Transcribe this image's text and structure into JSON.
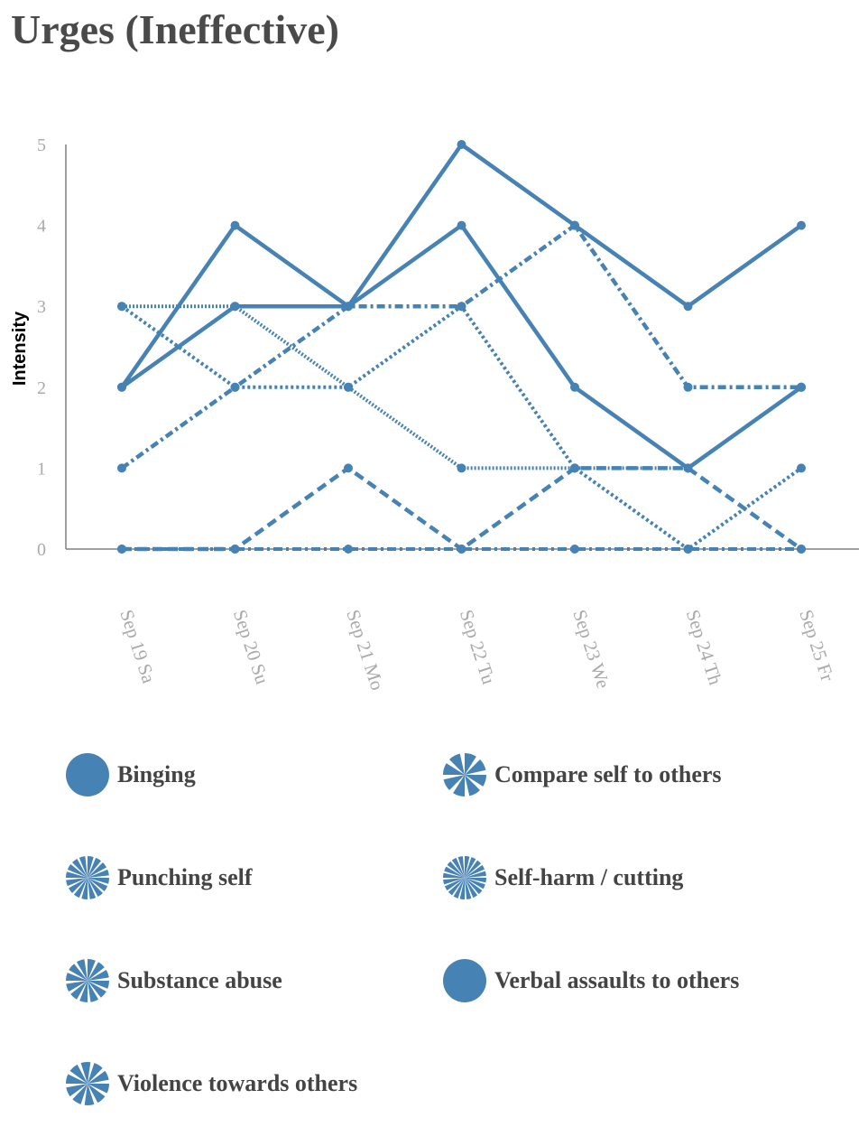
{
  "title": "Urges (Ineffective)",
  "chart_data": {
    "type": "line",
    "ylabel": "Intensity",
    "ylim": [
      0,
      5
    ],
    "yticks": [
      0,
      1,
      2,
      3,
      4,
      5
    ],
    "categories": [
      "Sep 19 Sa",
      "Sep 20 Su",
      "Sep 21 Mo",
      "Sep 22 Tu",
      "Sep 23 We",
      "Sep 24 Th",
      "Sep 25 Fr"
    ],
    "color": "#4682b4",
    "series": [
      {
        "name": "Binging",
        "values": [
          2,
          3,
          3,
          5,
          4,
          3,
          4
        ],
        "style": "solid"
      },
      {
        "name": "Compare self to others",
        "values": [
          3,
          2,
          2,
          3,
          1,
          0,
          1
        ],
        "style": "dotted"
      },
      {
        "name": "Punching self",
        "values": [
          0,
          0,
          0,
          0,
          0,
          0,
          0
        ],
        "style": "dash-dot"
      },
      {
        "name": "Self-harm / cutting",
        "values": [
          3,
          3,
          2,
          1,
          1,
          1,
          2
        ],
        "style": "fine-dotted"
      },
      {
        "name": "Substance abuse",
        "values": [
          0,
          0,
          1,
          0,
          1,
          1,
          0
        ],
        "style": "dashed"
      },
      {
        "name": "Verbal assaults to others",
        "values": [
          2,
          4,
          3,
          4,
          2,
          1,
          2
        ],
        "style": "solid"
      },
      {
        "name": "Violence towards others",
        "values": [
          1,
          2,
          3,
          3,
          4,
          2,
          2
        ],
        "style": "dashed-dotted"
      }
    ],
    "legend": "bottom",
    "legend_markers": [
      "filled",
      "spokes-8",
      "spokes-16",
      "spokes-20",
      "spokes-12",
      "filled",
      "spokes-10"
    ]
  }
}
